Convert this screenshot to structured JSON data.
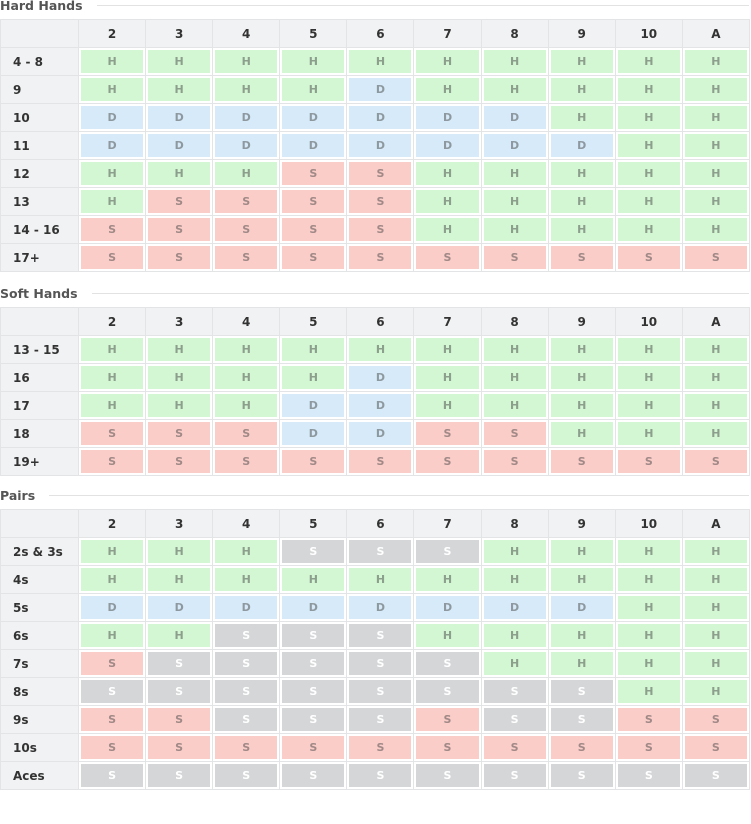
{
  "sections": [
    {
      "title": "Hard Hands",
      "columns": [
        "2",
        "3",
        "4",
        "5",
        "6",
        "7",
        "8",
        "9",
        "10",
        "A"
      ],
      "rows": [
        {
          "label": "4 - 8",
          "cells": [
            "H",
            "H",
            "H",
            "H",
            "H",
            "H",
            "H",
            "H",
            "H",
            "H"
          ],
          "colors": [
            "#d3f6d3",
            "#d3f6d3",
            "#d3f6d3",
            "#d3f6d3",
            "#d3f6d3",
            "#d3f6d3",
            "#d3f6d3",
            "#d3f6d3",
            "#d3f6d3",
            "#d3f6d3"
          ]
        },
        {
          "label": "9",
          "cells": [
            "H",
            "H",
            "H",
            "H",
            "D",
            "H",
            "H",
            "H",
            "H",
            "H"
          ],
          "colors": [
            "#d3f6d3",
            "#d3f6d3",
            "#d3f6d3",
            "#d3f6d3",
            "#d6eaf9",
            "#d3f6d3",
            "#d3f6d3",
            "#d3f6d3",
            "#d3f6d3",
            "#d3f6d3"
          ]
        },
        {
          "label": "10",
          "cells": [
            "D",
            "D",
            "D",
            "D",
            "D",
            "D",
            "D",
            "H",
            "H",
            "H"
          ],
          "colors": [
            "#d6eaf9",
            "#d6eaf9",
            "#d6eaf9",
            "#d6eaf9",
            "#d6eaf9",
            "#d6eaf9",
            "#d6eaf9",
            "#d3f6d3",
            "#d3f6d3",
            "#d3f6d3"
          ]
        },
        {
          "label": "11",
          "cells": [
            "D",
            "D",
            "D",
            "D",
            "D",
            "D",
            "D",
            "D",
            "H",
            "H"
          ],
          "colors": [
            "#d6eaf9",
            "#d6eaf9",
            "#d6eaf9",
            "#d6eaf9",
            "#d6eaf9",
            "#d6eaf9",
            "#d6eaf9",
            "#d6eaf9",
            "#d3f6d3",
            "#d3f6d3"
          ]
        },
        {
          "label": "12",
          "cells": [
            "H",
            "H",
            "H",
            "S",
            "S",
            "H",
            "H",
            "H",
            "H",
            "H"
          ],
          "colors": [
            "#d3f6d3",
            "#d3f6d3",
            "#d3f6d3",
            "#fbcdc8",
            "#fbcdc8",
            "#d3f6d3",
            "#d3f6d3",
            "#d3f6d3",
            "#d3f6d3",
            "#d3f6d3"
          ]
        },
        {
          "label": "13",
          "cells": [
            "H",
            "S",
            "S",
            "S",
            "S",
            "H",
            "H",
            "H",
            "H",
            "H"
          ],
          "colors": [
            "#d3f6d3",
            "#fbcdc8",
            "#fbcdc8",
            "#fbcdc8",
            "#fbcdc8",
            "#d3f6d3",
            "#d3f6d3",
            "#d3f6d3",
            "#d3f6d3",
            "#d3f6d3"
          ]
        },
        {
          "label": "14 - 16",
          "cells": [
            "S",
            "S",
            "S",
            "S",
            "S",
            "H",
            "H",
            "H",
            "H",
            "H"
          ],
          "colors": [
            "#fbcdc8",
            "#fbcdc8",
            "#fbcdc8",
            "#fbcdc8",
            "#fbcdc8",
            "#d3f6d3",
            "#d3f6d3",
            "#d3f6d3",
            "#d3f6d3",
            "#d3f6d3"
          ]
        },
        {
          "label": "17+",
          "cells": [
            "S",
            "S",
            "S",
            "S",
            "S",
            "S",
            "S",
            "S",
            "S",
            "S"
          ],
          "colors": [
            "#fbcdc8",
            "#fbcdc8",
            "#fbcdc8",
            "#fbcdc8",
            "#fbcdc8",
            "#fbcdc8",
            "#fbcdc8",
            "#fbcdc8",
            "#fbcdc8",
            "#fbcdc8"
          ]
        }
      ]
    },
    {
      "title": "Soft Hands",
      "columns": [
        "2",
        "3",
        "4",
        "5",
        "6",
        "7",
        "8",
        "9",
        "10",
        "A"
      ],
      "rows": [
        {
          "label": "13 - 15",
          "cells": [
            "H",
            "H",
            "H",
            "H",
            "H",
            "H",
            "H",
            "H",
            "H",
            "H"
          ],
          "colors": [
            "#d3f6d3",
            "#d3f6d3",
            "#d3f6d3",
            "#d3f6d3",
            "#d3f6d3",
            "#d3f6d3",
            "#d3f6d3",
            "#d3f6d3",
            "#d3f6d3",
            "#d3f6d3"
          ]
        },
        {
          "label": "16",
          "cells": [
            "H",
            "H",
            "H",
            "H",
            "D",
            "H",
            "H",
            "H",
            "H",
            "H"
          ],
          "colors": [
            "#d3f6d3",
            "#d3f6d3",
            "#d3f6d3",
            "#d3f6d3",
            "#d6eaf9",
            "#d3f6d3",
            "#d3f6d3",
            "#d3f6d3",
            "#d3f6d3",
            "#d3f6d3"
          ]
        },
        {
          "label": "17",
          "cells": [
            "H",
            "H",
            "H",
            "D",
            "D",
            "H",
            "H",
            "H",
            "H",
            "H"
          ],
          "colors": [
            "#d3f6d3",
            "#d3f6d3",
            "#d3f6d3",
            "#d6eaf9",
            "#d6eaf9",
            "#d3f6d3",
            "#d3f6d3",
            "#d3f6d3",
            "#d3f6d3",
            "#d3f6d3"
          ]
        },
        {
          "label": "18",
          "cells": [
            "S",
            "S",
            "S",
            "D",
            "D",
            "S",
            "S",
            "H",
            "H",
            "H"
          ],
          "colors": [
            "#fbcdc8",
            "#fbcdc8",
            "#fbcdc8",
            "#d6eaf9",
            "#d6eaf9",
            "#fbcdc8",
            "#fbcdc8",
            "#d3f6d3",
            "#d3f6d3",
            "#d3f6d3"
          ]
        },
        {
          "label": "19+",
          "cells": [
            "S",
            "S",
            "S",
            "S",
            "S",
            "S",
            "S",
            "S",
            "S",
            "S"
          ],
          "colors": [
            "#fbcdc8",
            "#fbcdc8",
            "#fbcdc8",
            "#fbcdc8",
            "#fbcdc8",
            "#fbcdc8",
            "#fbcdc8",
            "#fbcdc8",
            "#fbcdc8",
            "#fbcdc8"
          ]
        }
      ]
    },
    {
      "title": "Pairs",
      "columns": [
        "2",
        "3",
        "4",
        "5",
        "6",
        "7",
        "8",
        "9",
        "10",
        "A"
      ],
      "rows": [
        {
          "label": "2s & 3s",
          "cells": [
            "H",
            "H",
            "H",
            "S",
            "S",
            "S",
            "H",
            "H",
            "H",
            "H"
          ],
          "colors": [
            "#d3f6d3",
            "#d3f6d3",
            "#d3f6d3",
            "#d4d6d8",
            "#d4d6d8",
            "#d4d6d8",
            "#d3f6d3",
            "#d3f6d3",
            "#d3f6d3",
            "#d3f6d3"
          ]
        },
        {
          "label": "4s",
          "cells": [
            "H",
            "H",
            "H",
            "H",
            "H",
            "H",
            "H",
            "H",
            "H",
            "H"
          ],
          "colors": [
            "#d3f6d3",
            "#d3f6d3",
            "#d3f6d3",
            "#d3f6d3",
            "#d3f6d3",
            "#d3f6d3",
            "#d3f6d3",
            "#d3f6d3",
            "#d3f6d3",
            "#d3f6d3"
          ]
        },
        {
          "label": "5s",
          "cells": [
            "D",
            "D",
            "D",
            "D",
            "D",
            "D",
            "D",
            "D",
            "H",
            "H"
          ],
          "colors": [
            "#d6eaf9",
            "#d6eaf9",
            "#d6eaf9",
            "#d6eaf9",
            "#d6eaf9",
            "#d6eaf9",
            "#d6eaf9",
            "#d6eaf9",
            "#d3f6d3",
            "#d3f6d3"
          ]
        },
        {
          "label": "6s",
          "cells": [
            "H",
            "H",
            "S",
            "S",
            "S",
            "H",
            "H",
            "H",
            "H",
            "H"
          ],
          "colors": [
            "#d3f6d3",
            "#d3f6d3",
            "#d4d6d8",
            "#d4d6d8",
            "#d4d6d8",
            "#d3f6d3",
            "#d3f6d3",
            "#d3f6d3",
            "#d3f6d3",
            "#d3f6d3"
          ]
        },
        {
          "label": "7s",
          "cells": [
            "S",
            "S",
            "S",
            "S",
            "S",
            "S",
            "H",
            "H",
            "H",
            "H"
          ],
          "colors": [
            "#fbcdc8",
            "#d4d6d8",
            "#d4d6d8",
            "#d4d6d8",
            "#d4d6d8",
            "#d4d6d8",
            "#d3f6d3",
            "#d3f6d3",
            "#d3f6d3",
            "#d3f6d3"
          ]
        },
        {
          "label": "8s",
          "cells": [
            "S",
            "S",
            "S",
            "S",
            "S",
            "S",
            "S",
            "S",
            "H",
            "H"
          ],
          "colors": [
            "#d4d6d8",
            "#d4d6d8",
            "#d4d6d8",
            "#d4d6d8",
            "#d4d6d8",
            "#d4d6d8",
            "#d4d6d8",
            "#d4d6d8",
            "#d3f6d3",
            "#d3f6d3"
          ]
        },
        {
          "label": "9s",
          "cells": [
            "S",
            "S",
            "S",
            "S",
            "S",
            "S",
            "S",
            "S",
            "S",
            "S"
          ],
          "colors": [
            "#fbcdc8",
            "#fbcdc8",
            "#d4d6d8",
            "#d4d6d8",
            "#d4d6d8",
            "#fbcdc8",
            "#d4d6d8",
            "#d4d6d8",
            "#fbcdc8",
            "#fbcdc8"
          ]
        },
        {
          "label": "10s",
          "cells": [
            "S",
            "S",
            "S",
            "S",
            "S",
            "S",
            "S",
            "S",
            "S",
            "S"
          ],
          "colors": [
            "#fbcdc8",
            "#fbcdc8",
            "#fbcdc8",
            "#fbcdc8",
            "#fbcdc8",
            "#fbcdc8",
            "#fbcdc8",
            "#fbcdc8",
            "#fbcdc8",
            "#fbcdc8"
          ]
        },
        {
          "label": "Aces",
          "cells": [
            "S",
            "S",
            "S",
            "S",
            "S",
            "S",
            "S",
            "S",
            "S",
            "S"
          ],
          "colors": [
            "#d4d6d8",
            "#d4d6d8",
            "#d4d6d8",
            "#d4d6d8",
            "#d4d6d8",
            "#d4d6d8",
            "#d4d6d8",
            "#d4d6d8",
            "#d4d6d8",
            "#d4d6d8"
          ]
        }
      ]
    }
  ]
}
